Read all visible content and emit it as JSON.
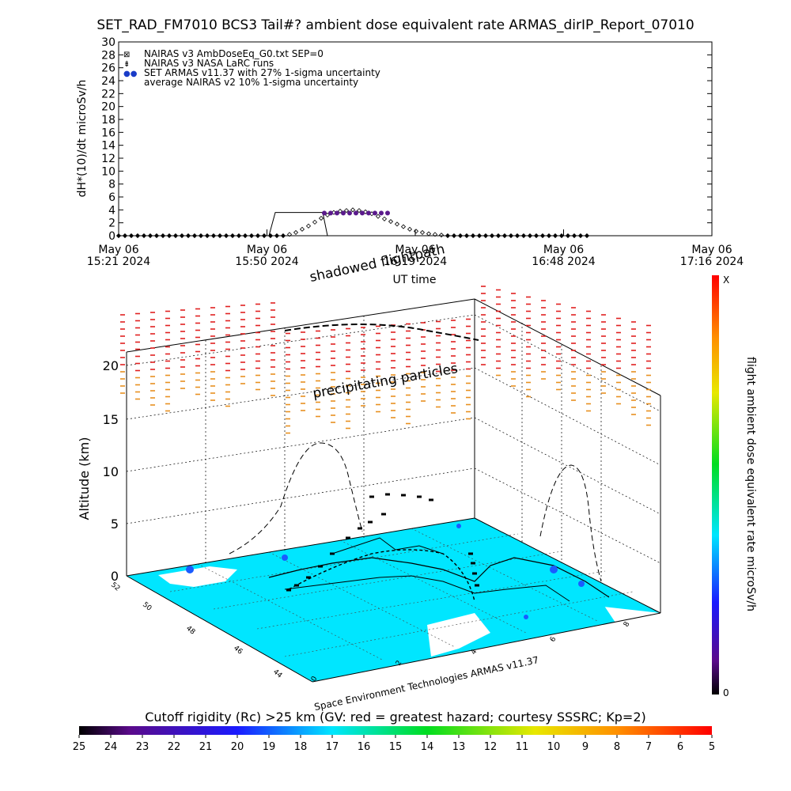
{
  "title": "SET_RAD_FM7010  BCS3 Tail#? ambient dose equivalent rate ARMAS_dirIP_Report_07010",
  "chart_data": [
    {
      "type": "scatter",
      "ylabel": "dH*(10)/dt microSv/h",
      "ylim": [
        0,
        30
      ],
      "yticks": [
        "0",
        "2",
        "4",
        "6",
        "8",
        "10",
        "12",
        "14",
        "16",
        "18",
        "20",
        "22",
        "24",
        "26",
        "28",
        "30"
      ],
      "xticks": [
        {
          "date": "May 06",
          "time": "15:21 2024"
        },
        {
          "date": "May 06",
          "time": "15:50 2024"
        },
        {
          "date": "May 06",
          "time": "16:19 2024"
        },
        {
          "date": "May 06",
          "time": "16:48 2024"
        },
        {
          "date": "May 06",
          "time": "17:16 2024"
        }
      ],
      "xlabel": "UT time",
      "legend_position": "top-left",
      "legend": [
        "NAIRAS v3 AmbDoseEq_G0.txt SEP=0",
        "NAIRAS v3 NASA LaRC runs",
        "SET ARMAS v11.37 with 27% 1-sigma uncertainty",
        "average NAIRAS v2 10% 1-sigma uncertainty"
      ],
      "series": [
        {
          "marker": "diamond",
          "x_minutes_labels": "15:21 to 16:48",
          "values": [
            0,
            0,
            0,
            0,
            0,
            0,
            0,
            0,
            0,
            0,
            0,
            0,
            0,
            0,
            0,
            0,
            0,
            0,
            0,
            0,
            0,
            0,
            0,
            0,
            0,
            0,
            0,
            0.2,
            0.5,
            1.0,
            1.5,
            2.1,
            2.7,
            3.2,
            3.6,
            3.8,
            3.9,
            4.0,
            3.9,
            3.7,
            3.4,
            3.0,
            2.6,
            2.2,
            1.8,
            1.4,
            1.0,
            0.7,
            0.5,
            0.3,
            0.2,
            0.1,
            0,
            0,
            0,
            0,
            0,
            0,
            0,
            0,
            0,
            0,
            0,
            0,
            0,
            0,
            0,
            0,
            0,
            0,
            0,
            0,
            0,
            0,
            0
          ]
        },
        {
          "marker": "filled-circle",
          "color": "#5a1a8c",
          "values_range_index": [
            30,
            40
          ],
          "value": 3.5
        }
      ]
    },
    {
      "type": "3d-flight-profile",
      "ylabel": "Altitude (km)",
      "zticks": [
        "0",
        "5",
        "10",
        "15",
        "20"
      ],
      "zlim": [
        0,
        22
      ],
      "annotations": [
        "shadowed flightpath",
        "precipitating particles",
        "Space Environment Technologies ARMAS v11.37"
      ],
      "latitude_ticks": [
        "52",
        "50",
        "48",
        "46",
        "44"
      ],
      "longitude_ticks": [
        "0",
        "2",
        "4",
        "6",
        "8"
      ],
      "right_colorbar": {
        "label": "flight ambient dose equivalent rate microSv/h",
        "top_label": "X",
        "bottom_label": "0"
      }
    },
    {
      "type": "colorbar",
      "title": "Cutoff rigidity (Rc) >25 km (GV: red = greatest hazard; courtesy SSSRC; Kp=2)",
      "ticks": [
        "25",
        "24",
        "23",
        "22",
        "21",
        "20",
        "19",
        "18",
        "17",
        "16",
        "15",
        "14",
        "13",
        "12",
        "11",
        "10",
        "9",
        "8",
        "7",
        "6",
        "5"
      ]
    }
  ],
  "colors": {
    "map_fill": "#00e6ff",
    "land_blue": "#1a5cff",
    "particles_red": "#e02020",
    "particles_orange": "#e89020",
    "track_purple": "#6a1aa0"
  }
}
